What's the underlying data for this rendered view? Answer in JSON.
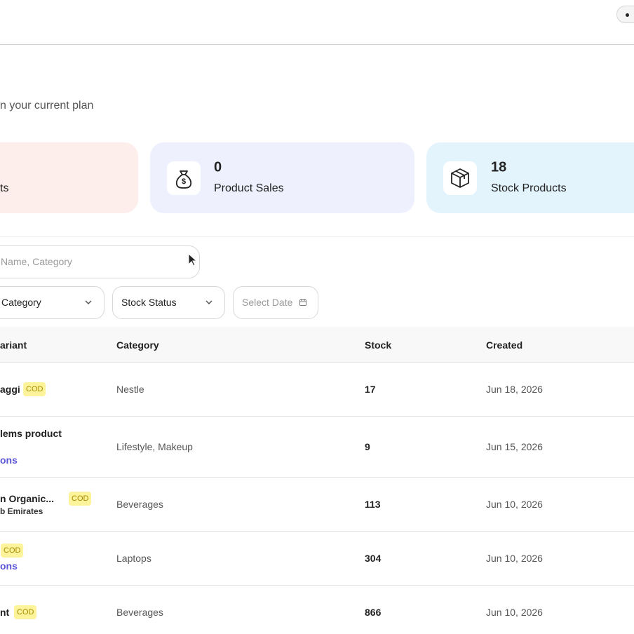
{
  "header": {
    "subtitle": "n your current plan"
  },
  "stats": [
    {
      "label": "ts"
    },
    {
      "value": 0,
      "label": "Product Sales"
    },
    {
      "value": 18,
      "label": "Stock Products"
    }
  ],
  "search": {
    "placeholder": "Name, Category"
  },
  "filters": [
    "Category",
    "Stock Status",
    "Select Date"
  ],
  "table": {
    "columns": [
      "ariant",
      "Category",
      "Stock",
      "Created"
    ],
    "rows": [
      {
        "name": "aggi",
        "badge": "COD",
        "category": "Nestle",
        "stock": 17,
        "created": "Jun 18, 2026"
      },
      {
        "name": "lems product",
        "link": "ons",
        "category": "Lifestyle, Makeup",
        "stock": 9,
        "created": "Jun 15, 2026"
      },
      {
        "name": "n Organic...",
        "sub": "b Emirates",
        "badge": "COD",
        "category": "Beverages",
        "stock": 113,
        "created": "Jun 10, 2026"
      },
      {
        "badge": "COD",
        "link": "ons",
        "category": "Laptops",
        "stock": 304,
        "created": "Jun 10, 2026"
      },
      {
        "name": "nt",
        "badge": "COD",
        "category": "Beverages",
        "stock": 866,
        "created": "Jun 10, 2026"
      }
    ]
  }
}
